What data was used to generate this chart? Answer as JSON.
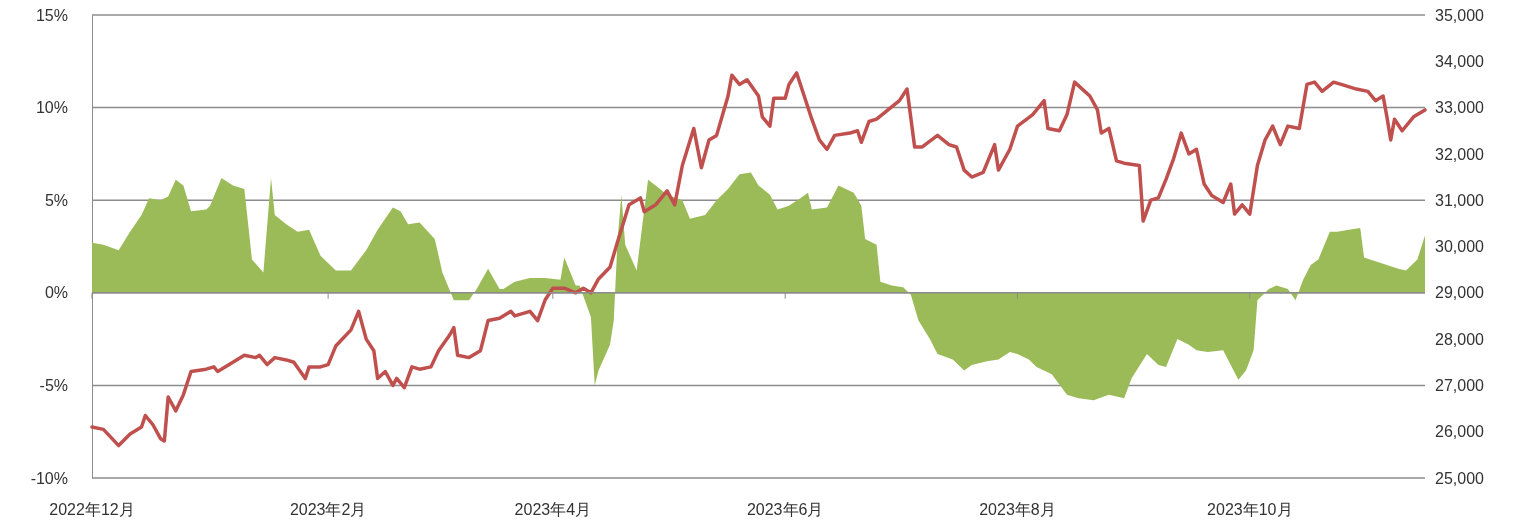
{
  "chart_data": {
    "type": "area",
    "xlim": [
      "2022-12-01",
      "2023-11-16"
    ],
    "xticks": [
      {
        "value": "2022-12-01",
        "label": "2022年12月"
      },
      {
        "value": "2023-02-01",
        "label": "2023年2月"
      },
      {
        "value": "2023-04-01",
        "label": "2023年4月"
      },
      {
        "value": "2023-06-01",
        "label": "2023年6月"
      },
      {
        "value": "2023-08-01",
        "label": "2023年8月"
      },
      {
        "value": "2023-10-01",
        "label": "2023年10月"
      }
    ],
    "ylim": [
      -10,
      15
    ],
    "yticks": [
      {
        "value": -10,
        "label": "-10%"
      },
      {
        "value": -5,
        "label": "-5%"
      },
      {
        "value": 0,
        "label": "0%"
      },
      {
        "value": 5,
        "label": "5%"
      },
      {
        "value": 10,
        "label": "10%"
      },
      {
        "value": 15,
        "label": "15%"
      }
    ],
    "y2lim": [
      25000,
      35000
    ],
    "y2ticks": [
      {
        "value": 25000,
        "label": "25,000"
      },
      {
        "value": 26000,
        "label": "26,000"
      },
      {
        "value": 27000,
        "label": "27,000"
      },
      {
        "value": 28000,
        "label": "28,000"
      },
      {
        "value": 29000,
        "label": "29,000"
      },
      {
        "value": 30000,
        "label": "30,000"
      },
      {
        "value": 31000,
        "label": "31,000"
      },
      {
        "value": 32000,
        "label": "32,000"
      },
      {
        "value": 33000,
        "label": "33,000"
      },
      {
        "value": 34000,
        "label": "34,000"
      },
      {
        "value": 35000,
        "label": "35,000"
      }
    ],
    "grid": "y",
    "series": [
      {
        "type": "area",
        "color": "#9bbb59",
        "x": [
          "2022-12-01",
          "2022-12-04",
          "2022-12-08",
          "2022-12-11",
          "2022-12-14",
          "2022-12-16",
          "2022-12-19",
          "2022-12-21",
          "2022-12-23",
          "2022-12-25",
          "2022-12-27",
          "2022-12-31",
          "2023-01-01",
          "2023-01-04",
          "2023-01-07",
          "2023-01-10",
          "2023-01-12",
          "2023-01-15",
          "2023-01-17",
          "2023-01-18",
          "2023-01-21",
          "2023-01-24",
          "2023-01-27",
          "2023-01-30",
          "2023-02-03",
          "2023-02-07",
          "2023-02-11",
          "2023-02-14",
          "2023-02-18",
          "2023-02-20",
          "2023-02-22",
          "2023-02-25",
          "2023-03-01",
          "2023-03-03",
          "2023-03-06",
          "2023-03-10",
          "2023-03-12",
          "2023-03-15",
          "2023-03-18",
          "2023-03-19",
          "2023-03-22",
          "2023-03-26",
          "2023-03-30",
          "2023-04-03",
          "2023-04-04",
          "2023-04-07",
          "2023-04-08",
          "2023-04-11",
          "2023-04-12",
          "2023-04-13",
          "2023-04-16",
          "2023-04-17",
          "2023-04-18",
          "2023-04-19",
          "2023-04-20",
          "2023-04-23",
          "2023-04-26",
          "2023-04-28",
          "2023-05-01",
          "2023-05-05",
          "2023-05-07",
          "2023-05-11",
          "2023-05-14",
          "2023-05-17",
          "2023-05-20",
          "2023-05-23",
          "2023-05-25",
          "2023-05-28",
          "2023-05-30",
          "2023-06-02",
          "2023-06-05",
          "2023-06-07",
          "2023-06-08",
          "2023-06-12",
          "2023-06-15",
          "2023-06-19",
          "2023-06-21",
          "2023-06-22",
          "2023-06-25",
          "2023-06-26",
          "2023-06-29",
          "2023-07-02",
          "2023-07-04",
          "2023-07-06",
          "2023-07-09",
          "2023-07-11",
          "2023-07-15",
          "2023-07-18",
          "2023-07-20",
          "2023-07-24",
          "2023-07-27",
          "2023-07-30",
          "2023-08-01",
          "2023-08-04",
          "2023-08-06",
          "2023-08-10",
          "2023-08-14",
          "2023-08-17",
          "2023-08-21",
          "2023-08-25",
          "2023-08-29",
          "2023-08-31",
          "2023-09-04",
          "2023-09-07",
          "2023-09-09",
          "2023-09-12",
          "2023-09-15",
          "2023-09-17",
          "2023-09-20",
          "2023-09-24",
          "2023-09-26",
          "2023-09-28",
          "2023-09-30",
          "2023-10-02",
          "2023-10-03",
          "2023-10-06",
          "2023-10-08",
          "2023-10-11",
          "2023-10-13",
          "2023-10-15",
          "2023-10-17",
          "2023-10-19",
          "2023-10-22",
          "2023-10-24",
          "2023-10-27",
          "2023-10-30",
          "2023-10-31",
          "2023-11-03",
          "2023-11-06",
          "2023-11-09",
          "2023-11-11",
          "2023-11-14",
          "2023-11-16"
        ],
        "values": [
          2.7,
          2.6,
          2.3,
          3.3,
          4.2,
          5.1,
          5.0,
          5.2,
          6.1,
          5.8,
          4.4,
          4.5,
          4.7,
          6.2,
          5.8,
          5.6,
          1.8,
          1.1,
          6.2,
          4.2,
          3.7,
          3.3,
          3.4,
          2.0,
          1.2,
          1.2,
          2.3,
          3.4,
          4.6,
          4.4,
          3.7,
          3.8,
          2.9,
          1.1,
          -0.4,
          -0.4,
          0.2,
          1.3,
          0.2,
          0.2,
          0.6,
          0.8,
          0.8,
          0.7,
          1.9,
          0.4,
          0.4,
          -1.3,
          -5.0,
          -4.2,
          -2.8,
          -1.5,
          2.9,
          5.3,
          2.6,
          1.2,
          6.1,
          5.8,
          5.3,
          5.0,
          4.0,
          4.2,
          5.0,
          5.6,
          6.4,
          6.5,
          5.8,
          5.3,
          4.5,
          4.7,
          5.1,
          5.4,
          4.5,
          4.6,
          5.8,
          5.4,
          4.7,
          2.9,
          2.6,
          0.6,
          0.4,
          0.3,
          -0.1,
          -1.5,
          -2.5,
          -3.3,
          -3.6,
          -4.2,
          -3.9,
          -3.7,
          -3.6,
          -3.2,
          -3.3,
          -3.6,
          -4.0,
          -4.4,
          -5.5,
          -5.7,
          -5.8,
          -5.5,
          -5.7,
          -4.6,
          -3.3,
          -3.9,
          -4.0,
          -2.5,
          -2.8,
          -3.1,
          -3.2,
          -3.1,
          -3.9,
          -4.7,
          -4.2,
          -3.1,
          -0.4,
          0.2,
          0.4,
          0.2,
          -0.4,
          0.7,
          1.5,
          1.8,
          3.3,
          3.3,
          3.4,
          3.5,
          1.9,
          1.7,
          1.5,
          1.3,
          1.2,
          1.8,
          3.1
        ]
      },
      {
        "type": "line",
        "axis": "y2",
        "color": "#c0504d",
        "x": [
          "2022-12-01",
          "2022-12-04",
          "2022-12-08",
          "2022-12-11",
          "2022-12-14",
          "2022-12-15",
          "2022-12-17",
          "2022-12-19",
          "2022-12-20",
          "2022-12-21",
          "2022-12-23",
          "2022-12-25",
          "2022-12-27",
          "2022-12-31",
          "2023-01-02",
          "2023-01-03",
          "2023-01-07",
          "2023-01-10",
          "2023-01-13",
          "2023-01-14",
          "2023-01-16",
          "2023-01-18",
          "2023-01-21",
          "2023-01-23",
          "2023-01-26",
          "2023-01-27",
          "2023-01-30",
          "2023-02-01",
          "2023-02-03",
          "2023-02-07",
          "2023-02-09",
          "2023-02-11",
          "2023-02-13",
          "2023-02-14",
          "2023-02-16",
          "2023-02-18",
          "2023-02-19",
          "2023-02-21",
          "2023-02-23",
          "2023-02-25",
          "2023-02-28",
          "2023-03-02",
          "2023-03-05",
          "2023-03-06",
          "2023-03-07",
          "2023-03-10",
          "2023-03-13",
          "2023-03-15",
          "2023-03-18",
          "2023-03-21",
          "2023-03-22",
          "2023-03-26",
          "2023-03-28",
          "2023-03-30",
          "2023-04-01",
          "2023-04-04",
          "2023-04-07",
          "2023-04-09",
          "2023-04-11",
          "2023-04-13",
          "2023-04-16",
          "2023-04-18",
          "2023-04-21",
          "2023-04-24",
          "2023-04-25",
          "2023-04-28",
          "2023-05-01",
          "2023-05-03",
          "2023-05-05",
          "2023-05-08",
          "2023-05-10",
          "2023-05-12",
          "2023-05-14",
          "2023-05-17",
          "2023-05-18",
          "2023-05-20",
          "2023-05-22",
          "2023-05-25",
          "2023-05-26",
          "2023-05-28",
          "2023-05-29",
          "2023-06-01",
          "2023-06-02",
          "2023-06-04",
          "2023-06-06",
          "2023-06-08",
          "2023-06-10",
          "2023-06-12",
          "2023-06-14",
          "2023-06-18",
          "2023-06-20",
          "2023-06-21",
          "2023-06-23",
          "2023-06-25",
          "2023-06-28",
          "2023-07-01",
          "2023-07-03",
          "2023-07-05",
          "2023-07-07",
          "2023-07-11",
          "2023-07-14",
          "2023-07-16",
          "2023-07-18",
          "2023-07-20",
          "2023-07-23",
          "2023-07-26",
          "2023-07-27",
          "2023-07-30",
          "2023-08-01",
          "2023-08-05",
          "2023-08-08",
          "2023-08-09",
          "2023-08-12",
          "2023-08-14",
          "2023-08-16",
          "2023-08-20",
          "2023-08-22",
          "2023-08-23",
          "2023-08-25",
          "2023-08-27",
          "2023-08-29",
          "2023-09-02",
          "2023-09-03",
          "2023-09-05",
          "2023-09-07",
          "2023-09-09",
          "2023-09-11",
          "2023-09-13",
          "2023-09-15",
          "2023-09-17",
          "2023-09-19",
          "2023-09-21",
          "2023-09-24",
          "2023-09-26",
          "2023-09-27",
          "2023-09-29",
          "2023-10-01",
          "2023-10-03",
          "2023-10-05",
          "2023-10-07",
          "2023-10-09",
          "2023-10-11",
          "2023-10-14",
          "2023-10-16",
          "2023-10-18",
          "2023-10-20",
          "2023-10-23",
          "2023-10-25",
          "2023-10-29",
          "2023-11-01",
          "2023-11-03",
          "2023-11-05",
          "2023-11-06",
          "2023-11-07",
          "2023-11-08",
          "2023-11-10",
          "2023-11-13",
          "2023-11-14",
          "2023-11-16"
        ],
        "values": [
          26100,
          26050,
          25700,
          25950,
          26100,
          26350,
          26150,
          25850,
          25800,
          26750,
          26450,
          26800,
          27300,
          27350,
          27400,
          27300,
          27500,
          27650,
          27600,
          27650,
          27450,
          27600,
          27550,
          27500,
          27150,
          27400,
          27400,
          27450,
          27850,
          28200,
          28600,
          28000,
          27750,
          27150,
          27300,
          27000,
          27150,
          26950,
          27400,
          27350,
          27400,
          27750,
          28100,
          28250,
          27650,
          27600,
          27750,
          28400,
          28450,
          28600,
          28500,
          28600,
          28400,
          28850,
          29100,
          29100,
          29000,
          29100,
          29000,
          29300,
          29550,
          30100,
          30900,
          31050,
          30750,
          30900,
          31200,
          30900,
          31750,
          32550,
          31700,
          32300,
          32400,
          33250,
          33700,
          33500,
          33600,
          33250,
          32800,
          32600,
          33200,
          33200,
          33500,
          33750,
          33250,
          32750,
          32300,
          32100,
          32400,
          32450,
          32500,
          32250,
          32700,
          32750,
          32950,
          33150,
          33400,
          32150,
          32150,
          32400,
          32200,
          32150,
          31650,
          31500,
          31600,
          32200,
          31650,
          32100,
          32600,
          32850,
          33150,
          32550,
          32500,
          32850,
          33550,
          33250,
          32950,
          32450,
          32550,
          31850,
          31800,
          31750,
          30550,
          31000,
          31050,
          31450,
          31900,
          32450,
          32000,
          32100,
          31350,
          31100,
          30950,
          31350,
          30700,
          30900,
          30700,
          31750,
          32300,
          32600,
          32200,
          32600,
          32550,
          33500,
          33550,
          33350,
          33550,
          33500,
          33400,
          33350,
          33150,
          33250,
          32800,
          32300,
          32750,
          32500,
          32800,
          32850,
          32950
        ]
      }
    ]
  }
}
